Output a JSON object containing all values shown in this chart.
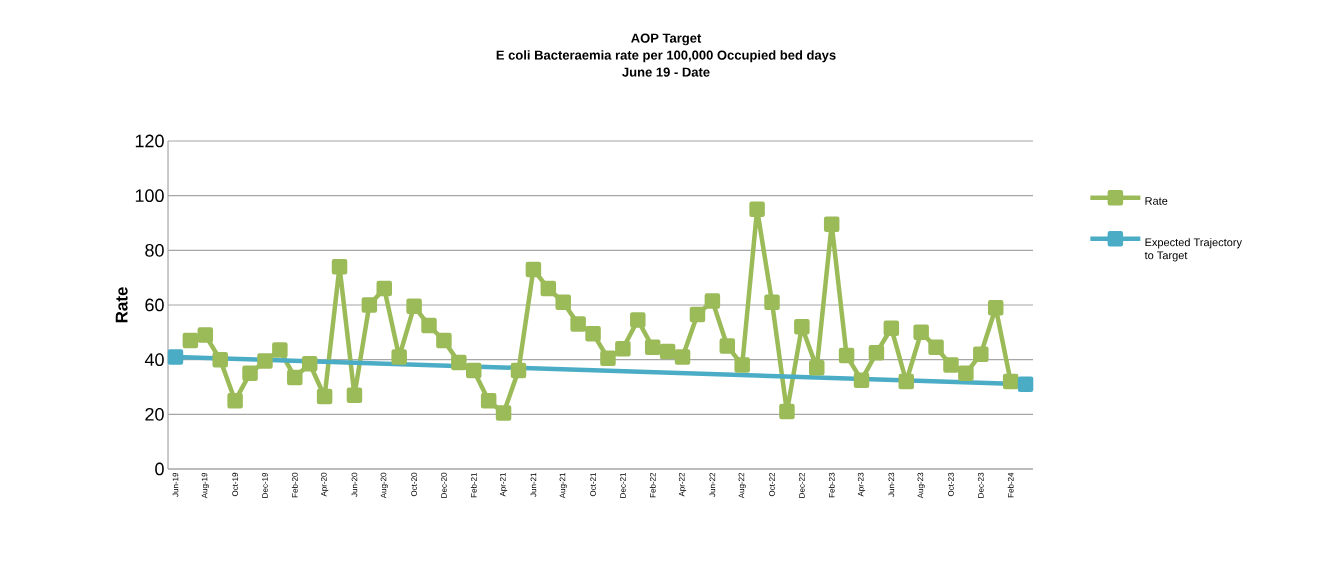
{
  "chart_data": {
    "type": "line",
    "title": "AOP Target",
    "subtitle": "E coli Bacteraemia rate per 100,000 Occupied bed days",
    "annotations": [
      "June 19 - Date"
    ],
    "ylabel": "Rate",
    "categories": [
      "Jun-19",
      null,
      "Aug-19",
      null,
      "Oct-19",
      null,
      "Dec-19",
      null,
      "Feb-20",
      null,
      "Apr-20",
      null,
      "Jun-20",
      null,
      "Aug-20",
      null,
      "Oct-20",
      null,
      "Dec-20",
      null,
      "Feb-21",
      null,
      "Apr-21",
      null,
      "Jun-21",
      null,
      "Aug-21",
      null,
      "Oct-21",
      null,
      "Dec-21",
      null,
      "Feb-22",
      null,
      "Apr-22",
      null,
      "Jun-22",
      null,
      "Aug-22",
      null,
      "Oct-22",
      null,
      "Dec-22",
      null,
      "Feb-23",
      null,
      "Apr-23",
      null,
      "Jun-23",
      null,
      "Aug-23",
      null,
      "Oct-23",
      null,
      "Dec-23",
      null,
      "Feb-24",
      null
    ],
    "series": [
      {
        "name": "Rate",
        "color": "#9bbb59",
        "values": [
          null,
          47,
          49,
          40,
          25,
          35,
          39.5,
          43.5,
          33.5,
          38.5,
          26.5,
          74,
          27,
          60,
          66,
          41,
          59.5,
          52.5,
          47,
          39,
          36,
          25,
          20.5,
          36,
          73,
          66,
          61,
          53,
          49.5,
          40.5,
          44,
          54.5,
          44.5,
          43,
          41,
          56.5,
          61.5,
          45,
          38,
          95,
          61,
          21,
          52,
          37,
          89.5,
          41.5,
          32.5,
          42.5,
          51.5,
          32,
          50,
          44.5,
          38,
          35,
          42,
          59,
          32,
          null
        ]
      },
      {
        "name": "Expected Trajectory to Target",
        "color": "#4bacc6",
        "values": [
          41,
          null,
          null,
          null,
          null,
          null,
          null,
          null,
          null,
          null,
          null,
          null,
          null,
          null,
          null,
          null,
          null,
          null,
          null,
          null,
          null,
          null,
          null,
          null,
          null,
          null,
          null,
          null,
          null,
          null,
          null,
          null,
          null,
          null,
          null,
          null,
          null,
          null,
          null,
          null,
          null,
          null,
          null,
          null,
          null,
          null,
          null,
          null,
          null,
          null,
          null,
          null,
          null,
          null,
          null,
          null,
          null,
          31
        ]
      }
    ],
    "ylim": [
      0,
      120
    ],
    "yticks": [
      0,
      20,
      40,
      60,
      80,
      100,
      120
    ],
    "grid": "y",
    "legend": "right",
    "marker": "square"
  }
}
